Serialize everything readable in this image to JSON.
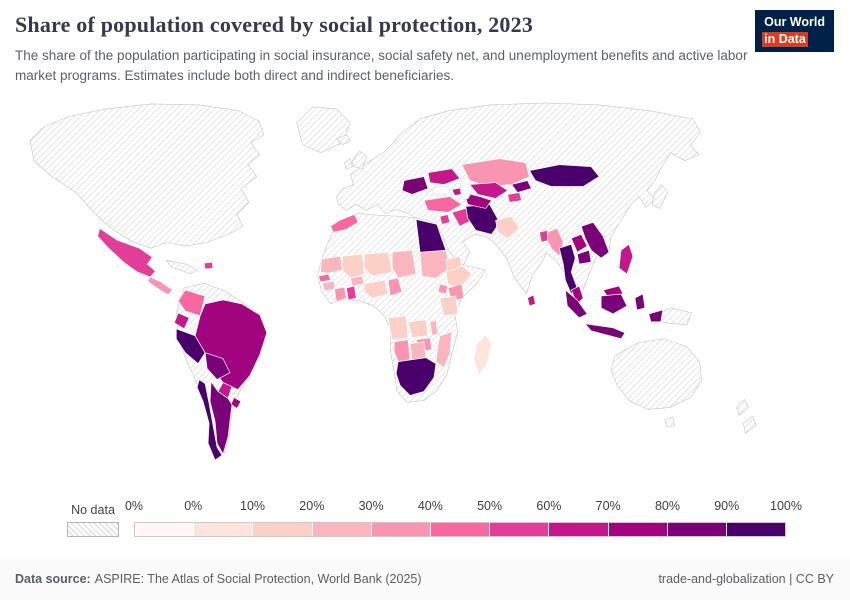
{
  "header": {
    "title": "Share of population covered by social protection, 2023",
    "subtitle": "The share of the population participating in social insurance, social safety net, and unemployment benefits and active labor market programs. Estimates include both direct and indirect beneficiaries."
  },
  "logo": {
    "line1": "Our World",
    "line2": "in Data"
  },
  "legend": {
    "no_data_label": "No data",
    "tick_labels": [
      "0%",
      "0%",
      "10%",
      "20%",
      "30%",
      "40%",
      "50%",
      "60%",
      "70%",
      "80%",
      "90%",
      "100%"
    ],
    "bin_colors": [
      "#fff7f3",
      "#fde4dd",
      "#fccfc7",
      "#fbb5bc",
      "#f994b1",
      "#f768a1",
      "#e23e99",
      "#c2188c",
      "#a1047e",
      "#7a0177",
      "#49006a"
    ]
  },
  "footer": {
    "datasource_label": "Data source:",
    "datasource_text": "ASPIRE: The Atlas of Social Protection, World Bank (2025)",
    "credit_text": "trade-and-globalization | CC BY"
  },
  "chart_data": {
    "type": "choropleth_map",
    "title": "Share of population covered by social protection",
    "year": "2023",
    "unit": "%",
    "bins": {
      "thresholds": [
        0,
        10,
        20,
        30,
        40,
        50,
        60,
        70,
        80,
        90,
        100
      ],
      "colors": [
        "#fff7f3",
        "#fde4dd",
        "#fccfc7",
        "#fbb5bc",
        "#f994b1",
        "#f768a1",
        "#e23e99",
        "#c2188c",
        "#a1047e",
        "#7a0177",
        "#49006a"
      ]
    },
    "series": [
      {
        "country": "Mexico",
        "value": 55
      },
      {
        "country": "Guatemala",
        "value": 35
      },
      {
        "country": "Dominican Republic",
        "value": 60
      },
      {
        "country": "Colombia",
        "value": 48
      },
      {
        "country": "Ecuador",
        "value": 65
      },
      {
        "country": "Peru",
        "value": 95
      },
      {
        "country": "Brazil",
        "value": 75
      },
      {
        "country": "Bolivia",
        "value": 85
      },
      {
        "country": "Paraguay",
        "value": 65
      },
      {
        "country": "Uruguay",
        "value": 78
      },
      {
        "country": "Argentina",
        "value": 88
      },
      {
        "country": "Chile",
        "value": 95
      },
      {
        "country": "Morocco",
        "value": 45
      },
      {
        "country": "Mauritania",
        "value": 28
      },
      {
        "country": "Senegal",
        "value": 45
      },
      {
        "country": "Guinea",
        "value": 22
      },
      {
        "country": "Cote d'Ivoire",
        "value": 35
      },
      {
        "country": "Ghana",
        "value": 55
      },
      {
        "country": "Burkina Faso",
        "value": 22
      },
      {
        "country": "Mali",
        "value": 18
      },
      {
        "country": "Niger",
        "value": 15
      },
      {
        "country": "Nigeria",
        "value": 15
      },
      {
        "country": "Cameroon",
        "value": 35
      },
      {
        "country": "Chad",
        "value": 22
      },
      {
        "country": "Sudan",
        "value": 25
      },
      {
        "country": "Egypt",
        "value": 95
      },
      {
        "country": "Ethiopia",
        "value": 18
      },
      {
        "country": "Kenya",
        "value": 35
      },
      {
        "country": "Uganda",
        "value": 32
      },
      {
        "country": "Tanzania",
        "value": 15
      },
      {
        "country": "Angola",
        "value": 15
      },
      {
        "country": "Zambia",
        "value": 18
      },
      {
        "country": "Malawi",
        "value": 25
      },
      {
        "country": "Mozambique",
        "value": 22
      },
      {
        "country": "Zimbabwe",
        "value": 35
      },
      {
        "country": "Namibia",
        "value": 38
      },
      {
        "country": "Botswana",
        "value": 28
      },
      {
        "country": "South Africa",
        "value": 95
      },
      {
        "country": "Madagascar",
        "value": 8
      },
      {
        "country": "Turkey",
        "value": 48
      },
      {
        "country": "Georgia",
        "value": 70
      },
      {
        "country": "Ukraine",
        "value": 65
      },
      {
        "country": "Romania",
        "value": 85
      },
      {
        "country": "Jordan",
        "value": 55
      },
      {
        "country": "Iraq",
        "value": 58
      },
      {
        "country": "Iran",
        "value": 95
      },
      {
        "country": "Yemen",
        "value": 15
      },
      {
        "country": "Kazakhstan",
        "value": 38
      },
      {
        "country": "Uzbekistan",
        "value": 65
      },
      {
        "country": "Turkmenistan",
        "value": 78
      },
      {
        "country": "Kyrgyzstan",
        "value": 82
      },
      {
        "country": "Tajikistan",
        "value": 55
      },
      {
        "country": "Pakistan",
        "value": 15
      },
      {
        "country": "Bangladesh",
        "value": 55
      },
      {
        "country": "Sri Lanka",
        "value": 65
      },
      {
        "country": "Mongolia",
        "value": 98
      },
      {
        "country": "Myanmar",
        "value": 35
      },
      {
        "country": "Thailand",
        "value": 95
      },
      {
        "country": "Laos",
        "value": 75
      },
      {
        "country": "Cambodia",
        "value": 85
      },
      {
        "country": "Vietnam",
        "value": 85
      },
      {
        "country": "Malaysia",
        "value": 78
      },
      {
        "country": "Philippines",
        "value": 65
      },
      {
        "country": "Indonesia",
        "value": 85
      }
    ],
    "no_data_regions": [
      "United States",
      "Canada",
      "Greenland",
      "Western Europe",
      "Russia",
      "China",
      "India",
      "Saudi Arabia",
      "Afghanistan",
      "Somalia",
      "Libya",
      "Algeria",
      "Democratic Republic of Congo",
      "Venezuela",
      "Papua New Guinea",
      "Australia",
      "New Zealand",
      "Japan"
    ]
  }
}
